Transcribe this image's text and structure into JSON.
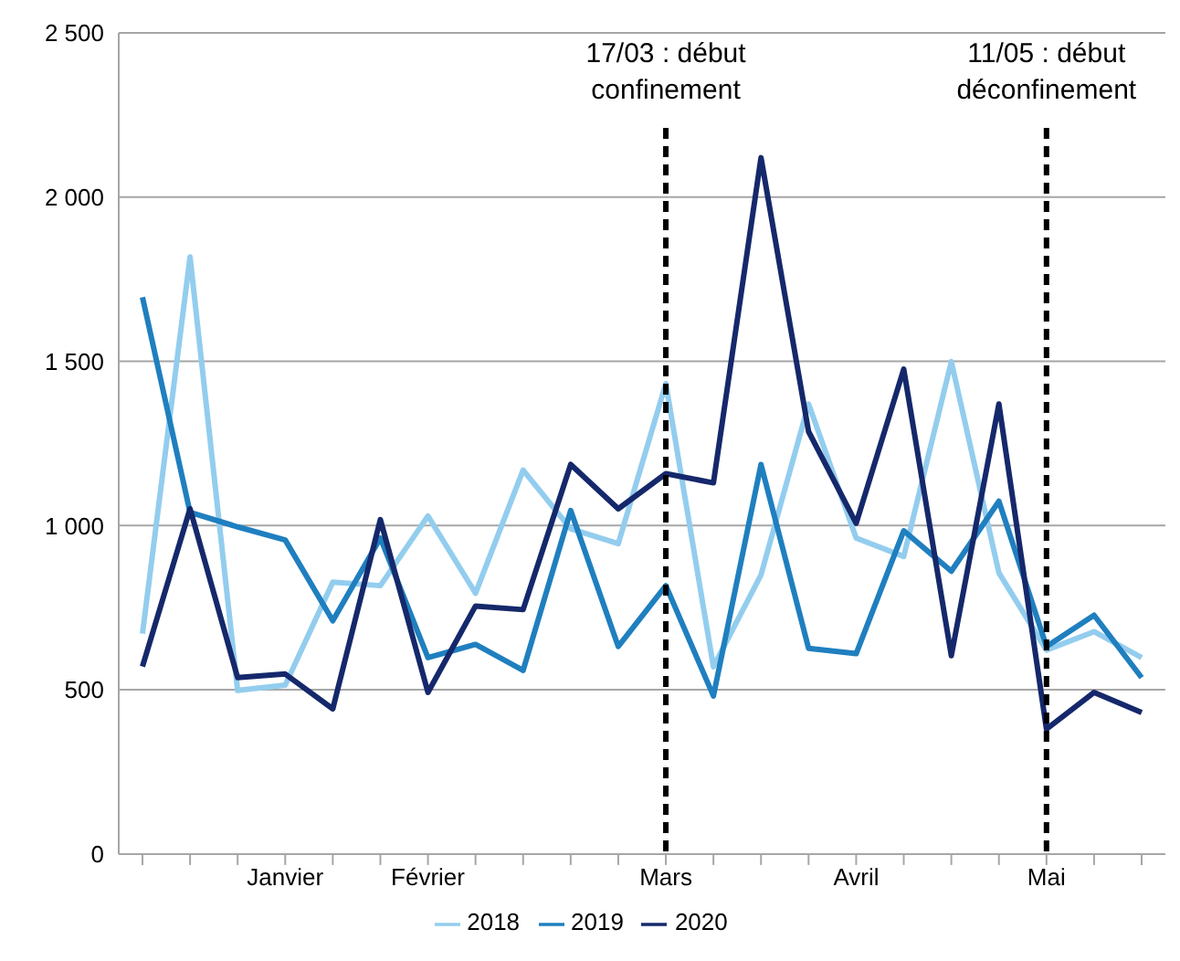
{
  "chart_data": {
    "type": "line",
    "categories": [
      null,
      null,
      null,
      "Janvier",
      null,
      null,
      "Février",
      null,
      null,
      null,
      null,
      "Mars",
      null,
      null,
      null,
      "Avril",
      null,
      null,
      null,
      "Mai",
      null,
      null
    ],
    "series": [
      {
        "name": "2018",
        "color": "#93cdee",
        "values": [
          671,
          1818,
          498,
          514,
          828,
          817,
          1029,
          794,
          1169,
          990,
          945,
          1432,
          570,
          850,
          1370,
          962,
          906,
          1499,
          856,
          621,
          677,
          598
        ]
      },
      {
        "name": "2019",
        "color": "#1f7fbf",
        "values": [
          1695,
          1040,
          996,
          956,
          710,
          962,
          598,
          638,
          559,
          1046,
          632,
          817,
          481,
          1186,
          626,
          610,
          984,
          861,
          1074,
          632,
          727,
          537
        ]
      },
      {
        "name": "2020",
        "color": "#15286b",
        "values": [
          571,
          1051,
          537,
          548,
          442,
          1018,
          492,
          755,
          744,
          1186,
          1051,
          1158,
          1130,
          2120,
          1286,
          1007,
          1476,
          604,
          1370,
          380,
          492,
          431
        ]
      }
    ],
    "ylim": [
      0,
      2500
    ],
    "yticks": [
      0,
      500,
      {
        "value": 1000,
        "label": "1 000"
      },
      {
        "value": 1500,
        "label": "1 500"
      },
      {
        "value": 2000,
        "label": "2 000"
      },
      {
        "value": 2500,
        "label": "2 500"
      }
    ],
    "grid": "y",
    "legend": "bottom",
    "marker": "none",
    "line_style": "solid",
    "ref_lines": [
      {
        "axis": "x",
        "value": "Mars",
        "label": "17/03 : début confinement",
        "color": "#000000",
        "line_style": "dashed"
      },
      {
        "axis": "x",
        "value": "Mai",
        "label": "11/05 : début déconfinement",
        "color": "#000000",
        "line_style": "dashed"
      }
    ]
  }
}
